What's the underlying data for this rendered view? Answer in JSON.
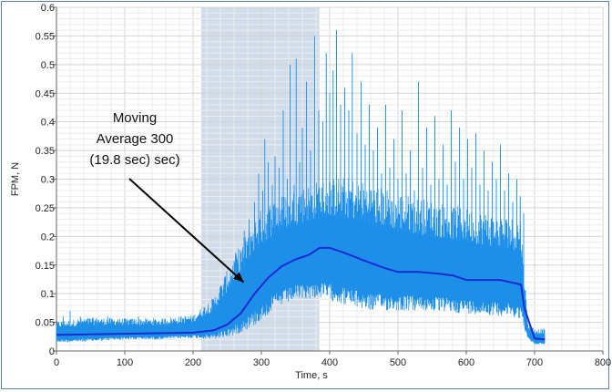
{
  "chart_data": {
    "type": "line",
    "title": "",
    "xlabel": "Time, s",
    "ylabel": "FPM, N",
    "xlim": [
      0,
      800
    ],
    "ylim": [
      0,
      0.6
    ],
    "x_ticks": [
      0,
      100,
      200,
      300,
      400,
      500,
      600,
      700,
      800
    ],
    "y_ticks": [
      0,
      0.05,
      0.1,
      0.15,
      0.2,
      0.25,
      0.3,
      0.35,
      0.4,
      0.45,
      0.5,
      0.55,
      0.6
    ],
    "x_tick_labels": [
      "0",
      "100",
      "200",
      "300",
      "400",
      "500",
      "600",
      "700",
      "800"
    ],
    "y_tick_labels": [
      "0",
      "0.05",
      "0.1",
      "0.15",
      "0.2",
      "0.25",
      "0.3",
      "0.35",
      "0.4",
      "0.45",
      "0.5",
      "0.55",
      "0.6"
    ],
    "grid": true,
    "highlight_region": {
      "x_start": 212,
      "x_end": 385
    },
    "annotation": {
      "lines": [
        "Moving",
        "Average 300",
        "(19.8 sec) sec)"
      ],
      "arrow_target": {
        "x": 290,
        "y": 0.12
      }
    },
    "series": [
      {
        "kind": "raw",
        "envelope": {
          "x": [
            0,
            50,
            100,
            150,
            200,
            230,
            260,
            290,
            320,
            350,
            380,
            400,
            430,
            460,
            500,
            550,
            600,
            650,
            680,
            690,
            700,
            715
          ],
          "low": [
            0.02,
            0.022,
            0.025,
            0.025,
            0.028,
            0.03,
            0.045,
            0.07,
            0.1,
            0.115,
            0.12,
            0.118,
            0.108,
            0.1,
            0.098,
            0.095,
            0.09,
            0.085,
            0.08,
            0.025,
            0.015,
            0.015
          ],
          "high": [
            0.04,
            0.045,
            0.045,
            0.045,
            0.05,
            0.07,
            0.12,
            0.175,
            0.205,
            0.22,
            0.23,
            0.235,
            0.23,
            0.22,
            0.21,
            0.2,
            0.19,
            0.18,
            0.175,
            0.04,
            0.03,
            0.03
          ]
        },
        "spikes": [
          [
            10,
            0.06
          ],
          [
            20,
            0.07
          ],
          [
            35,
            0.06
          ],
          [
            60,
            0.055
          ],
          [
            75,
            0.06
          ],
          [
            90,
            0.055
          ],
          [
            120,
            0.06
          ],
          [
            150,
            0.052
          ],
          [
            185,
            0.055
          ],
          [
            215,
            0.07
          ],
          [
            232,
            0.08
          ],
          [
            245,
            0.1
          ],
          [
            255,
            0.13
          ],
          [
            262,
            0.17
          ],
          [
            270,
            0.15
          ],
          [
            275,
            0.21
          ],
          [
            282,
            0.23
          ],
          [
            290,
            0.26
          ],
          [
            296,
            0.31
          ],
          [
            302,
            0.28
          ],
          [
            305,
            0.37
          ],
          [
            310,
            0.33
          ],
          [
            316,
            0.29
          ],
          [
            320,
            0.34
          ],
          [
            326,
            0.32
          ],
          [
            332,
            0.42
          ],
          [
            338,
            0.3
          ],
          [
            342,
            0.5
          ],
          [
            348,
            0.29
          ],
          [
            351,
            0.51
          ],
          [
            356,
            0.33
          ],
          [
            360,
            0.39
          ],
          [
            366,
            0.47
          ],
          [
            372,
            0.35
          ],
          [
            378,
            0.55
          ],
          [
            384,
            0.42
          ],
          [
            390,
            0.4
          ],
          [
            395,
            0.52
          ],
          [
            400,
            0.45
          ],
          [
            405,
            0.49
          ],
          [
            410,
            0.56
          ],
          [
            416,
            0.43
          ],
          [
            422,
            0.46
          ],
          [
            428,
            0.42
          ],
          [
            433,
            0.52
          ],
          [
            440,
            0.38
          ],
          [
            446,
            0.47
          ],
          [
            452,
            0.36
          ],
          [
            458,
            0.43
          ],
          [
            464,
            0.35
          ],
          [
            470,
            0.39
          ],
          [
            476,
            0.31
          ],
          [
            482,
            0.43
          ],
          [
            488,
            0.32
          ],
          [
            494,
            0.37
          ],
          [
            500,
            0.3
          ],
          [
            506,
            0.42
          ],
          [
            512,
            0.31
          ],
          [
            518,
            0.35
          ],
          [
            524,
            0.28
          ],
          [
            530,
            0.47
          ],
          [
            536,
            0.32
          ],
          [
            542,
            0.39
          ],
          [
            548,
            0.29
          ],
          [
            554,
            0.41
          ],
          [
            560,
            0.3
          ],
          [
            566,
            0.36
          ],
          [
            572,
            0.29
          ],
          [
            578,
            0.42
          ],
          [
            584,
            0.33
          ],
          [
            590,
            0.39
          ],
          [
            596,
            0.3
          ],
          [
            602,
            0.37
          ],
          [
            608,
            0.32
          ],
          [
            614,
            0.38
          ],
          [
            620,
            0.29
          ],
          [
            626,
            0.35
          ],
          [
            632,
            0.28
          ],
          [
            638,
            0.33
          ],
          [
            644,
            0.3
          ],
          [
            650,
            0.36
          ],
          [
            656,
            0.28
          ],
          [
            662,
            0.31
          ],
          [
            668,
            0.26
          ],
          [
            674,
            0.3
          ],
          [
            679,
            0.27
          ],
          [
            684,
            0.24
          ]
        ]
      },
      {
        "kind": "moving_average",
        "x": [
          0,
          100,
          200,
          230,
          250,
          270,
          290,
          310,
          330,
          350,
          370,
          385,
          400,
          420,
          450,
          480,
          500,
          530,
          560,
          580,
          600,
          630,
          650,
          680,
          685,
          700,
          715
        ],
        "y": [
          0.028,
          0.03,
          0.032,
          0.036,
          0.046,
          0.066,
          0.1,
          0.128,
          0.148,
          0.16,
          0.168,
          0.18,
          0.18,
          0.172,
          0.158,
          0.145,
          0.138,
          0.138,
          0.135,
          0.132,
          0.124,
          0.124,
          0.124,
          0.116,
          0.075,
          0.022,
          0.02
        ]
      }
    ]
  }
}
